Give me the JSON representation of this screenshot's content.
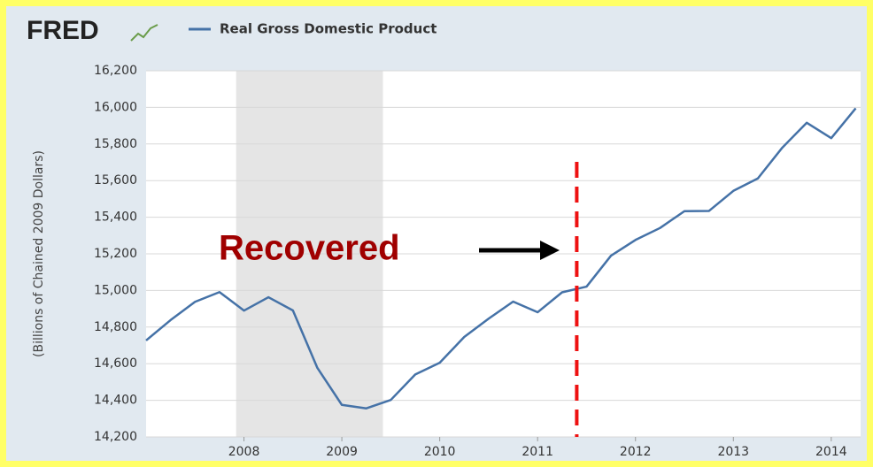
{
  "chart_data": {
    "type": "line",
    "logo": "FRED",
    "y_label": "(Billions of Chained 2009 Dollars)",
    "annotation": "Recovered",
    "marker_x": 2011.4,
    "recession": [
      2007.92,
      2009.42
    ],
    "x": [
      2007.0,
      2007.25,
      2007.5,
      2007.75,
      2008.0,
      2008.25,
      2008.5,
      2008.75,
      2009.0,
      2009.25,
      2009.5,
      2009.75,
      2010.0,
      2010.25,
      2010.5,
      2010.75,
      2011.0,
      2011.25,
      2011.5,
      2011.75,
      2012.0,
      2012.25,
      2012.5,
      2012.75,
      2013.0,
      2013.25,
      2013.5,
      2013.75,
      2014.0,
      2014.25
    ],
    "series": [
      {
        "name": "Real Gross Domestic Product",
        "color": "#4572a7",
        "values": [
          14727,
          14838,
          14938,
          14991,
          14890,
          14963,
          14891,
          14577,
          14375,
          14356,
          14402,
          14541,
          14605,
          14746,
          14846,
          14939,
          14881,
          14990,
          15021,
          15190,
          15276,
          15341,
          15433,
          15434,
          15544,
          15612,
          15780,
          15916,
          15832,
          15995
        ]
      }
    ],
    "xlim": [
      2007.0,
      2014.3
    ],
    "xticks": [
      2008,
      2009,
      2010,
      2011,
      2012,
      2013,
      2014
    ],
    "ylim": [
      14200,
      16200
    ],
    "yticks": [
      {
        "value": 14200,
        "label": "14,200"
      },
      {
        "value": 14400,
        "label": "14,400"
      },
      {
        "value": 14600,
        "label": "14,600"
      },
      {
        "value": 14800,
        "label": "14,800"
      },
      {
        "value": 15000,
        "label": "15,000"
      },
      {
        "value": 15200,
        "label": "15,200"
      },
      {
        "value": 15400,
        "label": "15,400"
      },
      {
        "value": 15600,
        "label": "15,600"
      },
      {
        "value": 15800,
        "label": "15,800"
      },
      {
        "value": 16000,
        "label": "16,000"
      },
      {
        "value": 16200,
        "label": "16,200"
      }
    ],
    "grid": true
  }
}
